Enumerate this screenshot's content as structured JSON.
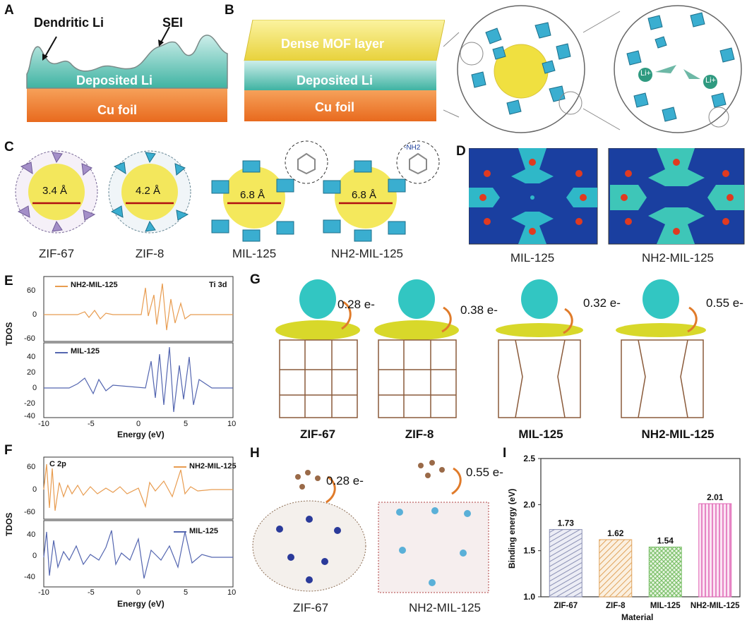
{
  "panel_labels": {
    "A": "A",
    "B": "B",
    "C": "C",
    "D": "D",
    "E": "E",
    "F": "F",
    "G": "G",
    "H": "H",
    "I": "I"
  },
  "panel_a": {
    "dendritic": "Dendritic Li",
    "sei": "SEI",
    "deposited": "Deposited Li",
    "cu": "Cu foil"
  },
  "panel_b": {
    "mof": "Dense MOF layer",
    "deposited": "Deposited Li",
    "cu": "Cu foil",
    "li_ion": "Li+"
  },
  "panel_c": {
    "items": [
      {
        "name": "ZIF-67",
        "pore": "3.4 Å"
      },
      {
        "name": "ZIF-8",
        "pore": "4.2 Å"
      },
      {
        "name": "MIL-125",
        "pore": "6.8 Å"
      },
      {
        "name": "NH2-MIL-125",
        "pore": "6.8 Å"
      }
    ],
    "nh2_tag": "-NH2"
  },
  "panel_d": {
    "left": "MIL-125",
    "right": "NH2-MIL-125"
  },
  "panel_e": {
    "ylabel": "TDOS",
    "xlabel": "Energy (eV)",
    "orbital": "Ti 3d",
    "top_legend": "NH2-MIL-125",
    "bottom_legend": "MIL-125",
    "top_yticks": [
      "60",
      "0",
      "-60"
    ],
    "bottom_yticks": [
      "40",
      "20",
      "0",
      "-20",
      "-40"
    ],
    "xticks": [
      "-10",
      "-5",
      "0",
      "5",
      "10"
    ]
  },
  "panel_f": {
    "ylabel": "TDOS",
    "xlabel": "Energy (eV)",
    "orbital": "C 2p",
    "top_legend": "NH2-MIL-125",
    "bottom_legend": "MIL-125",
    "top_yticks": [
      "60",
      "0",
      "-60"
    ],
    "bottom_yticks": [
      "40",
      "0",
      "-40"
    ],
    "xticks": [
      "-10",
      "-5",
      "0",
      "5",
      "10"
    ]
  },
  "panel_g": {
    "items": [
      {
        "name": "ZIF-67",
        "charge": "0.28 e-"
      },
      {
        "name": "ZIF-8",
        "charge": "0.38 e-"
      },
      {
        "name": "MIL-125",
        "charge": "0.32 e-"
      },
      {
        "name": "NH2-MIL-125",
        "charge": "0.55 e-"
      }
    ]
  },
  "panel_h": {
    "items": [
      {
        "name": "ZIF-67",
        "charge": "0.28 e-"
      },
      {
        "name": "NH2-MIL-125",
        "charge": "0.55 e-"
      }
    ]
  },
  "colors": {
    "accent_teal": "#2bb5c6",
    "mof_yellow": "#f2e04a",
    "cu_orange": "#f08030",
    "li_teal": "#4ab9a6",
    "bar_ticks": "#5b6aa8"
  },
  "chart_data": {
    "type": "bar",
    "title": "",
    "xlabel": "Material",
    "ylabel": "Binding energy (eV)",
    "ylim": [
      1.0,
      2.5
    ],
    "yticks": [
      "1.0",
      "1.5",
      "2.0",
      "2.5"
    ],
    "categories": [
      "ZIF-67",
      "ZIF-8",
      "MIL-125",
      "NH2-MIL-125"
    ],
    "values": [
      1.73,
      1.62,
      1.54,
      2.01
    ],
    "value_labels": [
      "1.73",
      "1.62",
      "1.54",
      "2.01"
    ],
    "bar_colors": [
      "#8a8fb4",
      "#e0a35c",
      "#7cc06a",
      "#e064b4"
    ]
  }
}
